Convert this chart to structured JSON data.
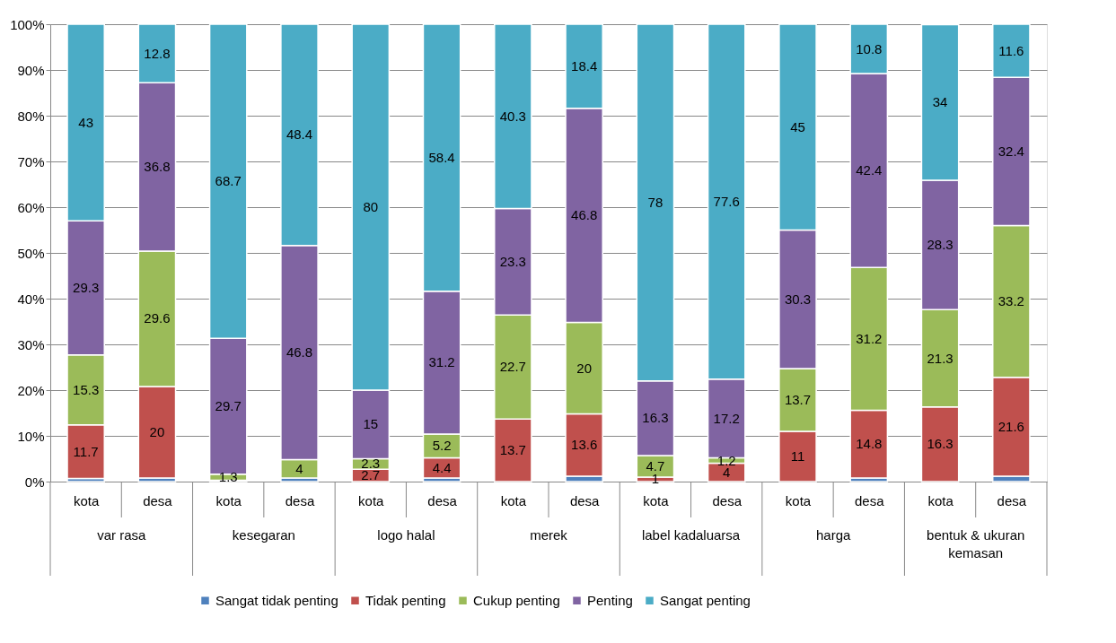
{
  "chart_data": {
    "type": "bar",
    "stacked": true,
    "grid": "y",
    "legend": "bottom",
    "categories": [
      "kota",
      "desa",
      "kota",
      "desa",
      "kota",
      "desa",
      "kota",
      "desa",
      "kota",
      "desa",
      "kota",
      "desa",
      "kota",
      "desa"
    ],
    "annotations": [
      "var rasa",
      "kesegaran",
      "logo halal",
      "merek",
      "label kadaluarsa",
      "harga",
      "bentuk & ukuran kemasan"
    ],
    "ylim": [
      0,
      100
    ],
    "yticks": [
      {
        "value": 0,
        "label": "0%"
      },
      {
        "value": 10,
        "label": "10%"
      },
      {
        "value": 20,
        "label": "20%"
      },
      {
        "value": 30,
        "label": "30%"
      },
      {
        "value": 40,
        "label": "40%"
      },
      {
        "value": 50,
        "label": "50%"
      },
      {
        "value": 60,
        "label": "60%"
      },
      {
        "value": 70,
        "label": "70%"
      },
      {
        "value": 80,
        "label": "80%"
      },
      {
        "value": 90,
        "label": "90%"
      },
      {
        "value": 100,
        "label": "100%"
      }
    ],
    "series": [
      {
        "name": "Sangat tidak penting",
        "color": "#4f81bd",
        "values": [
          0.7,
          0.8,
          null,
          0.8,
          null,
          0.8,
          null,
          1.2,
          null,
          null,
          null,
          0.8,
          null,
          1.2
        ],
        "value_labels": [
          null,
          null,
          null,
          null,
          null,
          null,
          null,
          null,
          null,
          null,
          null,
          null,
          null,
          null
        ]
      },
      {
        "name": "Tidak penting",
        "color": "#c0504d",
        "values": [
          11.7,
          20,
          0.3,
          null,
          2.7,
          4.4,
          13.7,
          13.6,
          1,
          4,
          11,
          14.8,
          16.3,
          21.6
        ],
        "value_labels": [
          "11.7",
          "20",
          null,
          null,
          "2.7",
          "4.4",
          "13.7",
          "13.6",
          "1",
          "4",
          "11",
          "14.8",
          "16.3",
          "21.6"
        ]
      },
      {
        "name": "Cukup penting",
        "color": "#9bbb59",
        "values": [
          15.3,
          29.6,
          1.3,
          4,
          2.3,
          5.2,
          22.7,
          20,
          4.7,
          1.2,
          13.7,
          31.2,
          21.3,
          33.2
        ],
        "value_labels": [
          "15.3",
          "29.6",
          "1.3",
          "4",
          "2.3",
          "5.2",
          "22.7",
          "20",
          "4.7",
          "1.2",
          "13.7",
          "31.2",
          "21.3",
          "33.2"
        ]
      },
      {
        "name": "Penting",
        "color": "#8064a2",
        "values": [
          29.3,
          36.8,
          29.7,
          46.8,
          15,
          31.2,
          23.3,
          46.8,
          16.3,
          17.2,
          30.3,
          42.4,
          28.3,
          32.4
        ],
        "value_labels": [
          "29.3",
          "36.8",
          "29.7",
          "46.8",
          "15",
          "31.2",
          "23.3",
          "46.8",
          "16.3",
          "17.2",
          "30.3",
          "42.4",
          "28.3",
          "32.4"
        ]
      },
      {
        "name": "Sangat penting",
        "color": "#4bacc6",
        "values": [
          43,
          12.8,
          68.7,
          48.4,
          80,
          58.4,
          40.3,
          18.4,
          78,
          77.6,
          45,
          10.8,
          34,
          11.6
        ],
        "value_labels": [
          "43",
          "12.8",
          "68.7",
          "48.4",
          "80",
          "58.4",
          "40.3",
          "18.4",
          "78",
          "77.6",
          "45",
          "10.8",
          "34",
          "11.6"
        ]
      }
    ]
  }
}
